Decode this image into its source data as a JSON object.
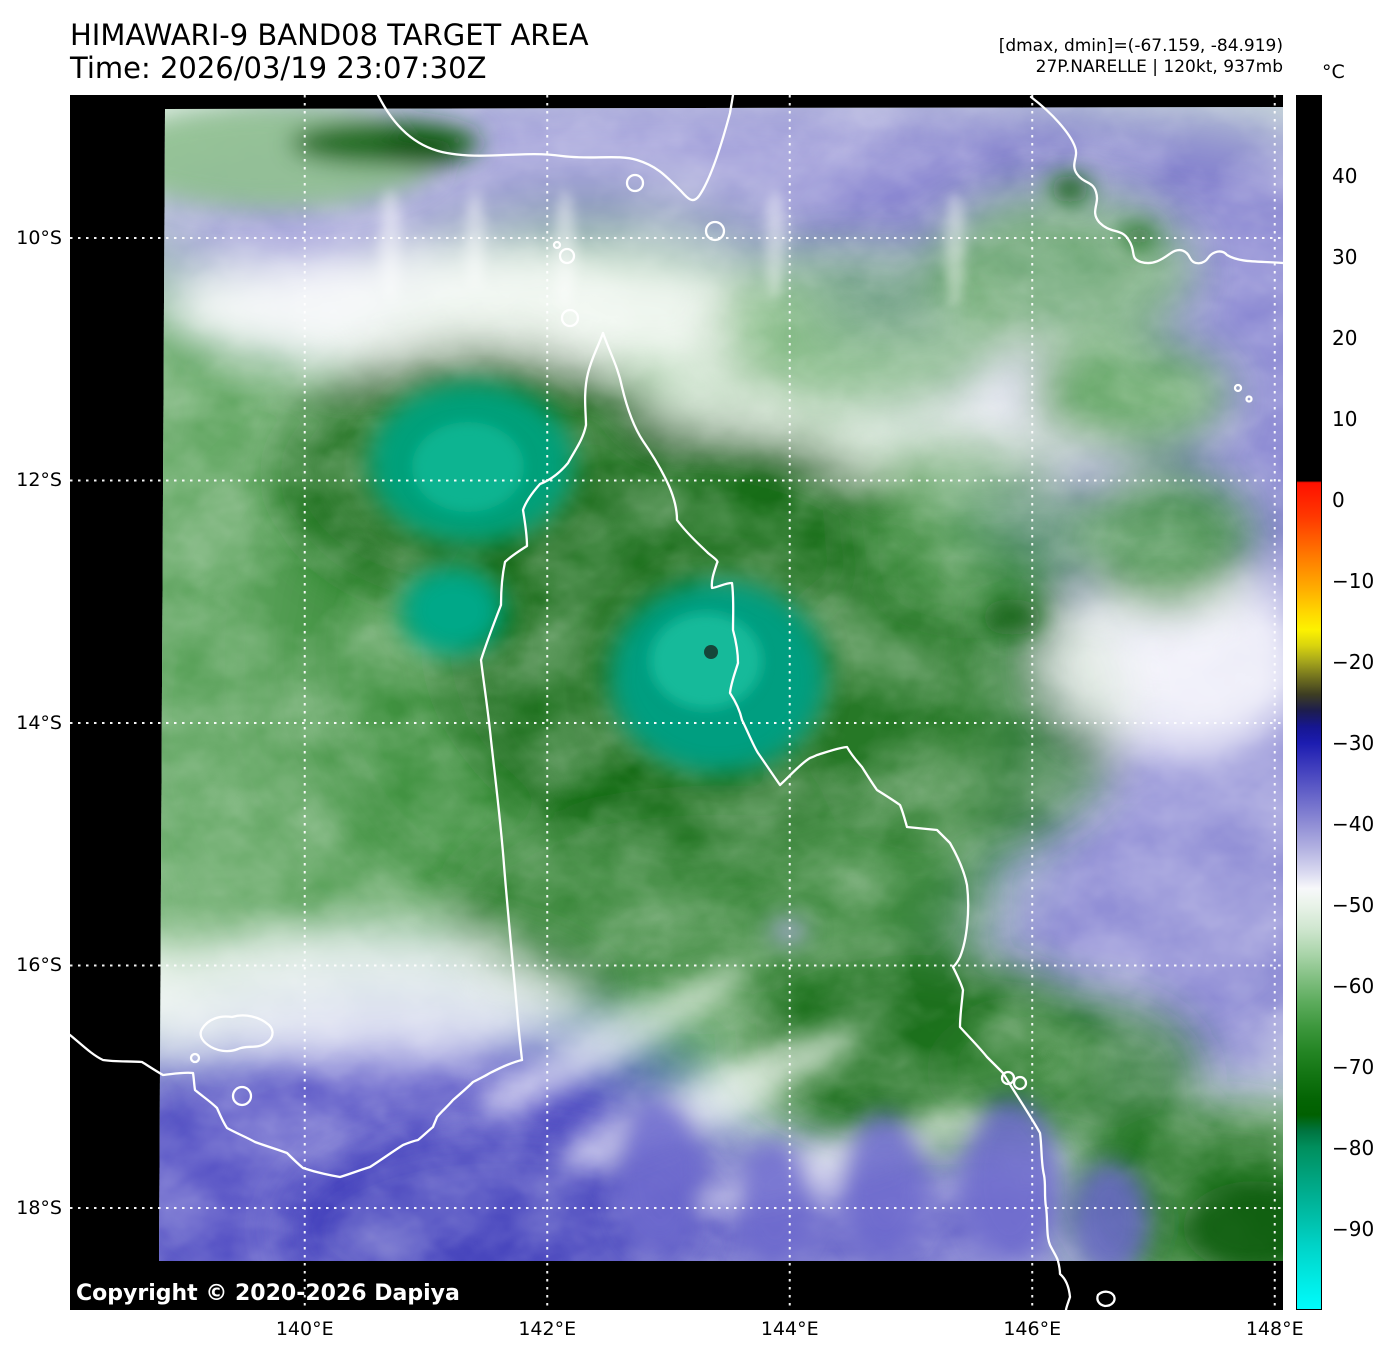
{
  "header": {
    "title": "HIMAWARI-9 BAND08 TARGET AREA",
    "time_line": "Time: 2026/03/19 23:07:30Z",
    "range_line": "[dmax, dmin]=(-67.159, -84.919)",
    "storm_line": "27P.NARELLE | 120kt, 937mb"
  },
  "map": {
    "copyright": "Copyright © 2020-2026 Dapiya",
    "lat_ticks": [
      {
        "label": "10°S",
        "lat": 10
      },
      {
        "label": "12°S",
        "lat": 12
      },
      {
        "label": "14°S",
        "lat": 14
      },
      {
        "label": "16°S",
        "lat": 16
      },
      {
        "label": "18°S",
        "lat": 18
      }
    ],
    "lon_ticks": [
      {
        "label": "140°E",
        "lon": 140
      },
      {
        "label": "142°E",
        "lon": 142
      },
      {
        "label": "144°E",
        "lon": 144
      },
      {
        "label": "146°E",
        "lon": 146
      },
      {
        "label": "148°E",
        "lon": 148
      }
    ]
  },
  "colorbar": {
    "unit": "°C",
    "vmax": 50,
    "vmin": -100,
    "ticks": [
      {
        "label": "40",
        "value": 40
      },
      {
        "label": "30",
        "value": 30
      },
      {
        "label": "20",
        "value": 20
      },
      {
        "label": "10",
        "value": 10
      },
      {
        "label": "0",
        "value": 0
      },
      {
        "label": "−10",
        "value": -10
      },
      {
        "label": "−20",
        "value": -20
      },
      {
        "label": "−30",
        "value": -30
      },
      {
        "label": "−40",
        "value": -40
      },
      {
        "label": "−50",
        "value": -50
      },
      {
        "label": "−60",
        "value": -60
      },
      {
        "label": "−70",
        "value": -70
      },
      {
        "label": "−80",
        "value": -80
      },
      {
        "label": "−90",
        "value": -90
      }
    ],
    "stops": [
      {
        "v": 50,
        "c": "#000000"
      },
      {
        "v": 2.4,
        "c": "#000000"
      },
      {
        "v": 2.2,
        "c": "#ff1000"
      },
      {
        "v": -2,
        "c": "#ff3800"
      },
      {
        "v": -7,
        "c": "#ff7b00"
      },
      {
        "v": -11,
        "c": "#ffae00"
      },
      {
        "v": -14,
        "c": "#ffd900"
      },
      {
        "v": -16,
        "c": "#fdf200"
      },
      {
        "v": -18,
        "c": "#d8d30e"
      },
      {
        "v": -20,
        "c": "#a3a31c"
      },
      {
        "v": -22,
        "c": "#6f6f1e"
      },
      {
        "v": -24,
        "c": "#3d3d22"
      },
      {
        "v": -26,
        "c": "#1d1d4e"
      },
      {
        "v": -28,
        "c": "#161690"
      },
      {
        "v": -30,
        "c": "#1c1cb0"
      },
      {
        "v": -33,
        "c": "#3f3dbd"
      },
      {
        "v": -36,
        "c": "#615fc7"
      },
      {
        "v": -40,
        "c": "#8f8dd5"
      },
      {
        "v": -43,
        "c": "#b2b1e1"
      },
      {
        "v": -46,
        "c": "#d9d9f0"
      },
      {
        "v": -48,
        "c": "#f7f8fa"
      },
      {
        "v": -50,
        "c": "#e9f3e9"
      },
      {
        "v": -53,
        "c": "#cfe6cf"
      },
      {
        "v": -56,
        "c": "#abd5ab"
      },
      {
        "v": -59,
        "c": "#83c083"
      },
      {
        "v": -62,
        "c": "#5dac5d"
      },
      {
        "v": -65,
        "c": "#3e983e"
      },
      {
        "v": -68,
        "c": "#258625"
      },
      {
        "v": -71,
        "c": "#137513"
      },
      {
        "v": -74,
        "c": "#046504"
      },
      {
        "v": -76,
        "c": "#016001"
      },
      {
        "v": -78,
        "c": "#007440"
      },
      {
        "v": -80,
        "c": "#008f5d"
      },
      {
        "v": -83,
        "c": "#009f78"
      },
      {
        "v": -86,
        "c": "#00af92"
      },
      {
        "v": -89,
        "c": "#00c0ab"
      },
      {
        "v": -92,
        "c": "#00d2c6"
      },
      {
        "v": -96,
        "c": "#00e8e1"
      },
      {
        "v": -100,
        "c": "#00fcfc"
      }
    ]
  }
}
